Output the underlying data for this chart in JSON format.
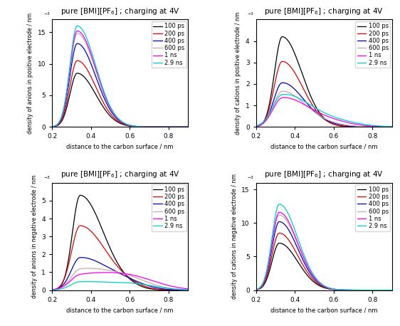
{
  "colors": {
    "100ps": "#000000",
    "200ps": "#dd0000",
    "400ps": "#0000bb",
    "600ps": "#c8a8a8",
    "1ns": "#ee00ee",
    "2.9ns": "#00cccc"
  },
  "xlabel": "distance to the carbon surface / nm",
  "xlim": [
    0.2,
    0.9
  ],
  "xticks": [
    0.2,
    0.4,
    0.6,
    0.8
  ],
  "title": "pure [BMI][PF$_6$] ; charging at 4V",
  "legend_labels": [
    "100 ps",
    "200 ps",
    "400 ps",
    "600 ps",
    "1 ns",
    "2.9 ns"
  ],
  "tl": {
    "ylabel_main": "density of anions in positive electrode / nm",
    "ylabel_sup": "-3",
    "ylim": [
      0,
      17
    ],
    "yticks": [
      0,
      5,
      10,
      15
    ],
    "peak_x": [
      0.33,
      0.33,
      0.33,
      0.33,
      0.33,
      0.33
    ],
    "peak_h": [
      8.5,
      10.5,
      13.2,
      14.8,
      15.2,
      16.0
    ],
    "peak_w": [
      0.038,
      0.038,
      0.038,
      0.038,
      0.038,
      0.038
    ]
  },
  "tr": {
    "ylabel_main": "density of cations in positive electrode / nm",
    "ylabel_sup": "-3",
    "ylim": [
      0,
      5
    ],
    "yticks": [
      0,
      1,
      2,
      3,
      4
    ],
    "peak_x": [
      0.335,
      0.335,
      0.335,
      0.335,
      0.335,
      0.335
    ],
    "peak_h": [
      4.2,
      3.05,
      2.05,
      1.65,
      1.3,
      1.4
    ],
    "peak_w": [
      0.04,
      0.042,
      0.044,
      0.046,
      0.048,
      0.05
    ],
    "plateau_h": [
      0.0,
      0.0,
      0.08,
      0.12,
      0.3,
      0.35
    ],
    "plateau_x": [
      0.55,
      0.55,
      0.55,
      0.55,
      0.55,
      0.55
    ],
    "plateau_w": [
      0.1,
      0.1,
      0.1,
      0.1,
      0.12,
      0.14
    ]
  },
  "bl": {
    "ylabel_main": "density of anions in negative electrode / nm",
    "ylabel_sup": "-3",
    "ylim": [
      0,
      6
    ],
    "yticks": [
      0,
      1,
      2,
      3,
      4,
      5
    ],
    "peak_x": [
      0.345,
      0.345,
      0.345,
      0.345,
      0.345,
      0.345
    ],
    "peak_h": [
      5.3,
      3.6,
      1.8,
      1.1,
      0.75,
      0.45
    ],
    "peak_w": [
      0.04,
      0.044,
      0.046,
      0.048,
      0.05,
      0.05
    ],
    "tail_h": [
      0.08,
      0.12,
      0.35,
      0.6,
      0.7,
      0.3
    ],
    "tail_x": [
      0.6,
      0.6,
      0.58,
      0.58,
      0.6,
      0.62
    ],
    "tail_w": [
      0.06,
      0.07,
      0.1,
      0.12,
      0.14,
      0.12
    ]
  },
  "br": {
    "ylabel_main": "density of cations in negative electrode / nm",
    "ylabel_sup": "-3",
    "ylim": [
      0,
      16
    ],
    "yticks": [
      0,
      5,
      10,
      15
    ],
    "peak_x": [
      0.32,
      0.32,
      0.32,
      0.32,
      0.32,
      0.32
    ],
    "peak_h": [
      7.0,
      8.5,
      10.2,
      11.2,
      11.6,
      12.8
    ],
    "peak_w": [
      0.038,
      0.038,
      0.038,
      0.038,
      0.038,
      0.038
    ]
  }
}
